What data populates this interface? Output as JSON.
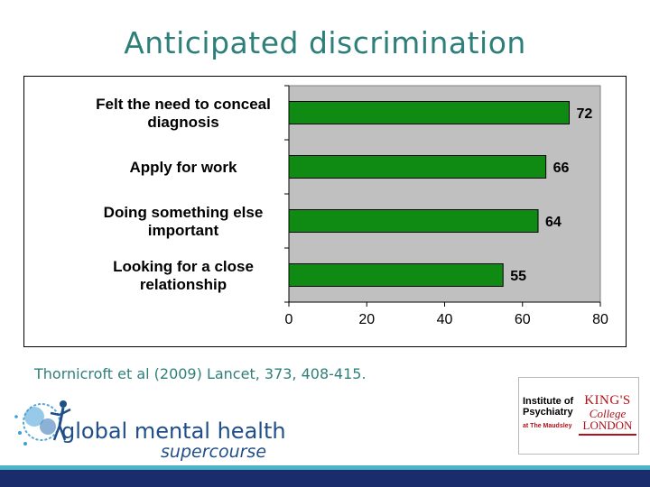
{
  "slide": {
    "title": "Anticipated discrimination",
    "citation": "Thornicroft et al (2009) Lancet, 373, 408-415."
  },
  "chart_data": {
    "type": "bar",
    "orientation": "horizontal",
    "categories": [
      [
        "Felt the need to conceal",
        "diagnosis"
      ],
      [
        "Apply for work"
      ],
      [
        "Doing something else",
        "important"
      ],
      [
        "Looking for a close",
        "relationship"
      ]
    ],
    "values": [
      72,
      66,
      64,
      55
    ],
    "data_labels": [
      "72",
      "66",
      "64",
      "55"
    ],
    "xlim": [
      0,
      80
    ],
    "xticks": [
      0,
      20,
      40,
      60,
      80
    ],
    "title": "",
    "xlabel": "",
    "ylabel": "",
    "grid": false,
    "colors": {
      "bar": "#0f8a12",
      "plot_bg": "#c0c0c0",
      "bar_outline": "#000000"
    }
  },
  "logos": {
    "gmh_line1": "global mental health",
    "gmh_line2": "supercourse",
    "institute_name": [
      "Institute of",
      "Psychiatry"
    ],
    "institute_sub": "at The Maudsley",
    "kings_lines": [
      "KING'S",
      "College",
      "LONDON"
    ]
  },
  "colors": {
    "title": "#2e7f7a",
    "footer_teal": "#4db3c9",
    "footer_navy": "#1a2c6b"
  }
}
